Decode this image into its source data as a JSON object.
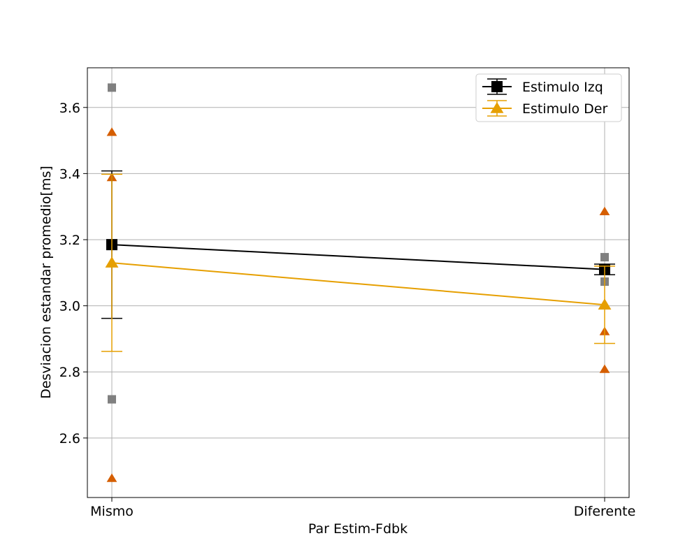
{
  "chart_data": {
    "type": "line",
    "categories": [
      "Mismo",
      "Diferente"
    ],
    "xlabel": "Par Estim-Fdbk",
    "ylabel": "Desviacion estandar promedio[ms]",
    "ylim": [
      2.42,
      3.72
    ],
    "yticks": [
      2.6,
      2.8,
      3.0,
      3.2,
      3.4,
      3.6
    ],
    "ytick_labels": [
      "2.6",
      "2.8",
      "3.0",
      "3.2",
      "3.4",
      "3.6"
    ],
    "grid": true,
    "legend_position": "top-right",
    "series": [
      {
        "name": "Estimulo Izq",
        "marker": "square",
        "color": "#000000",
        "mean": [
          3.185,
          3.11
        ],
        "error_low": [
          2.962,
          3.094
        ],
        "error_high": [
          3.408,
          3.126
        ],
        "individual_color": "#808080",
        "individual": [
          [
            3.66,
            2.717
          ],
          [
            3.147,
            3.073
          ]
        ]
      },
      {
        "name": "Estimulo Der",
        "marker": "triangle",
        "color": "#e69f00",
        "mean": [
          3.13,
          3.003
        ],
        "error_low": [
          2.862,
          2.886
        ],
        "error_high": [
          3.398,
          3.12
        ],
        "individual_color": "#d55e00",
        "individual": [
          [
            3.525,
            3.388,
            2.478
          ],
          [
            3.285,
            2.922,
            2.808
          ]
        ]
      }
    ]
  }
}
